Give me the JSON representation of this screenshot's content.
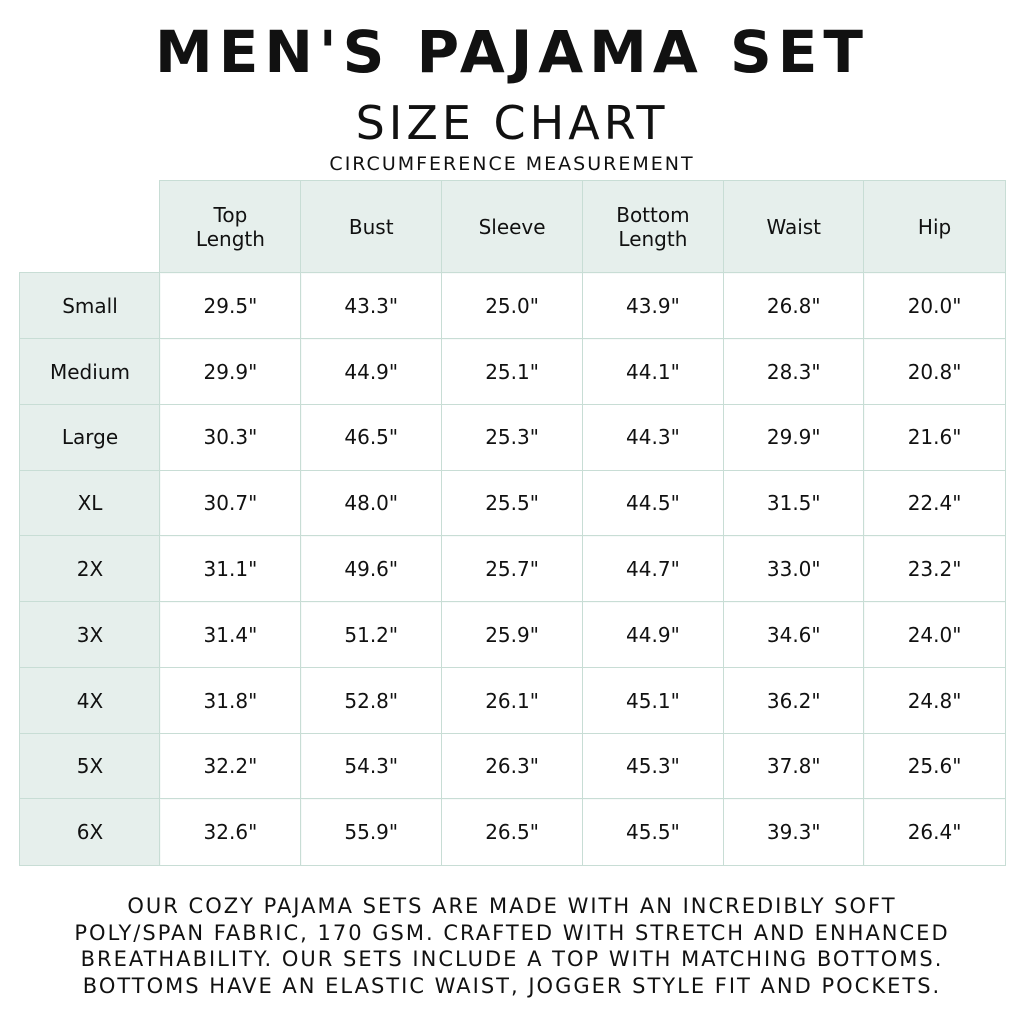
{
  "title": "MEN'S PAJAMA SET",
  "subtitle": "SIZE CHART",
  "note": "CIRCUMFERENCE MEASUREMENT",
  "colors": {
    "header_bg": "#e6efec",
    "border": "#c8ddd5",
    "text": "#111111"
  },
  "columns": [
    "Top Length",
    "Bust",
    "Sleeve",
    "Bottom Length",
    "Waist",
    "Hip"
  ],
  "rows": [
    {
      "size": "Small",
      "values": [
        "29.5\"",
        "43.3\"",
        "25.0\"",
        "43.9\"",
        "26.8\"",
        "20.0\""
      ]
    },
    {
      "size": "Medium",
      "values": [
        "29.9\"",
        "44.9\"",
        "25.1\"",
        "44.1\"",
        "28.3\"",
        "20.8\""
      ]
    },
    {
      "size": "Large",
      "values": [
        "30.3\"",
        "46.5\"",
        "25.3\"",
        "44.3\"",
        "29.9\"",
        "21.6\""
      ]
    },
    {
      "size": "XL",
      "values": [
        "30.7\"",
        "48.0\"",
        "25.5\"",
        "44.5\"",
        "31.5\"",
        "22.4\""
      ]
    },
    {
      "size": "2X",
      "values": [
        "31.1\"",
        "49.6\"",
        "25.7\"",
        "44.7\"",
        "33.0\"",
        "23.2\""
      ]
    },
    {
      "size": "3X",
      "values": [
        "31.4\"",
        "51.2\"",
        "25.9\"",
        "44.9\"",
        "34.6\"",
        "24.0\""
      ]
    },
    {
      "size": "4X",
      "values": [
        "31.8\"",
        "52.8\"",
        "26.1\"",
        "45.1\"",
        "36.2\"",
        "24.8\""
      ]
    },
    {
      "size": "5X",
      "values": [
        "32.2\"",
        "54.3\"",
        "26.3\"",
        "45.3\"",
        "37.8\"",
        "25.6\""
      ]
    },
    {
      "size": "6X",
      "values": [
        "32.6\"",
        "55.9\"",
        "26.5\"",
        "45.5\"",
        "39.3\"",
        "26.4\""
      ]
    }
  ],
  "description": [
    "OUR COZY PAJAMA SETS ARE MADE WITH AN INCREDIBLY SOFT",
    "POLY/SPAN FABRIC, 170 GSM. CRAFTED WITH STRETCH AND ENHANCED",
    "BREATHABILITY. OUR SETS INCLUDE A TOP WITH MATCHING BOTTOMS.",
    "BOTTOMS HAVE AN ELASTIC WAIST, JOGGER STYLE FIT AND POCKETS."
  ]
}
